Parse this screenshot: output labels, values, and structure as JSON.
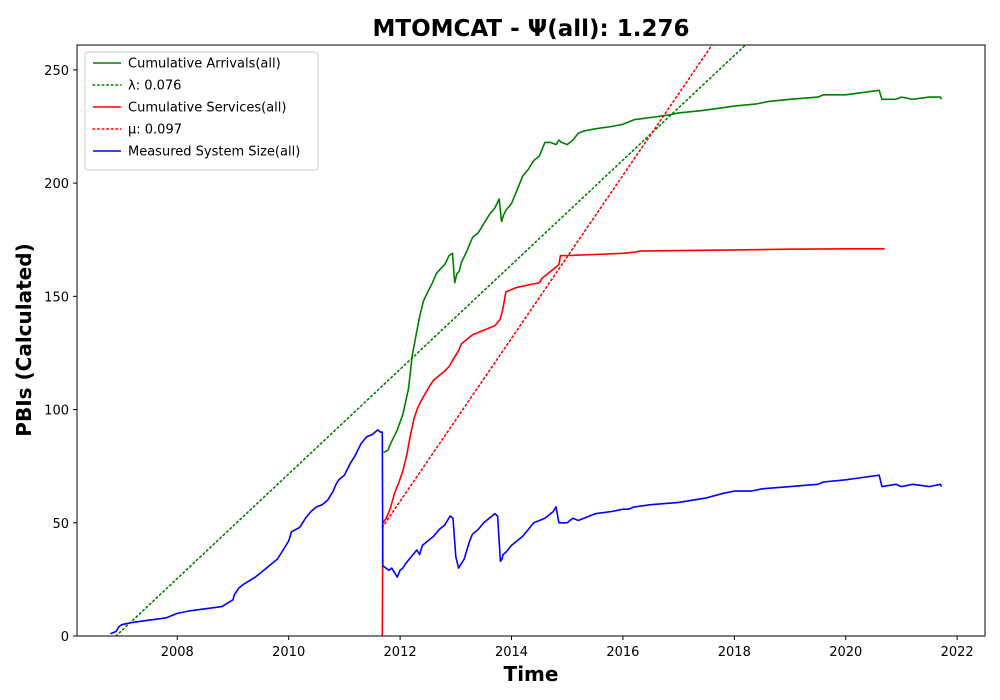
{
  "chart_data": {
    "type": "line",
    "title": "MTOMCAT -  Ψ(all): 1.276",
    "xlabel": "Time",
    "ylabel": "PBIs (Calculated)",
    "xlim": [
      2006.2,
      2022.5
    ],
    "ylim": [
      0,
      261
    ],
    "grid": false,
    "legend_position": "top-left",
    "x_ticks": [
      2008,
      2010,
      2012,
      2014,
      2016,
      2018,
      2020,
      2022
    ],
    "x_tick_labels": [
      "2008",
      "2010",
      "2012",
      "2014",
      "2016",
      "2018",
      "2020",
      "2022"
    ],
    "y_ticks": [
      0,
      50,
      100,
      150,
      200,
      250
    ],
    "y_tick_labels": [
      "0",
      "50",
      "100",
      "150",
      "200",
      "250"
    ],
    "series": [
      {
        "name": "Cumulative Arrivals(all)",
        "color": "#008000",
        "style": "solid",
        "x": [
          2011.7,
          2011.78,
          2011.85,
          2011.95,
          2012.05,
          2012.15,
          2012.22,
          2012.28,
          2012.35,
          2012.42,
          2012.5,
          2012.58,
          2012.65,
          2012.72,
          2012.8,
          2012.88,
          2012.94,
          2012.98,
          2013.02,
          2013.06,
          2013.1,
          2013.2,
          2013.3,
          2013.4,
          2013.5,
          2013.6,
          2013.7,
          2013.78,
          2013.82,
          2013.86,
          2013.9,
          2014.0,
          2014.1,
          2014.2,
          2014.3,
          2014.4,
          2014.5,
          2014.6,
          2014.7,
          2014.8,
          2014.85,
          2014.9,
          2015.0,
          2015.1,
          2015.2,
          2015.3,
          2015.5,
          2015.8,
          2016.0,
          2016.2,
          2016.5,
          2016.8,
          2017.0,
          2017.4,
          2017.7,
          2018.0,
          2018.4,
          2018.6,
          2019.0,
          2019.5,
          2019.6,
          2020.0,
          2020.3,
          2020.6,
          2020.65,
          2020.9,
          2021.0,
          2021.2,
          2021.5,
          2021.7,
          2021.72
        ],
        "y": [
          81,
          82,
          86,
          91,
          98,
          109,
          124,
          132,
          141,
          148,
          152,
          156,
          160,
          162,
          164,
          168,
          169,
          156,
          160,
          161,
          165,
          170,
          176,
          178,
          182,
          186,
          189,
          193,
          183,
          186,
          188,
          191,
          197,
          203,
          206,
          210,
          212,
          218,
          218,
          217,
          219,
          218,
          217,
          219,
          222,
          223,
          224,
          225,
          226,
          228,
          229,
          230,
          231,
          232,
          233,
          234,
          235,
          236,
          237,
          238,
          239,
          239,
          240,
          241,
          237,
          237,
          238,
          237,
          238,
          238,
          237
        ]
      },
      {
        "name": "λ: 0.076",
        "color": "#008000",
        "style": "dotted",
        "x": [
          2006.9,
          2018.2
        ],
        "y": [
          0,
          261
        ]
      },
      {
        "name": "Cumulative Services(all)",
        "color": "#ff0000",
        "style": "solid",
        "x": [
          2011.68,
          2011.69,
          2011.75,
          2011.82,
          2011.9,
          2011.98,
          2012.05,
          2012.12,
          2012.18,
          2012.25,
          2012.32,
          2012.38,
          2012.45,
          2012.52,
          2012.6,
          2012.7,
          2012.8,
          2012.88,
          2012.95,
          2013.0,
          2013.05,
          2013.1,
          2013.2,
          2013.3,
          2013.4,
          2013.5,
          2013.6,
          2013.7,
          2013.8,
          2013.85,
          2013.9,
          2014.0,
          2014.1,
          2014.3,
          2014.5,
          2014.55,
          2014.65,
          2014.75,
          2014.85,
          2014.88,
          2015.0,
          2015.5,
          2016.0,
          2016.2,
          2016.3,
          2017.0,
          2018.0,
          2019.0,
          2020.0,
          2020.7
        ],
        "y": [
          0,
          50,
          52,
          56,
          63,
          68,
          73,
          80,
          88,
          96,
          101,
          104,
          107,
          110,
          113,
          115,
          117,
          119,
          122,
          124,
          126,
          129,
          131,
          133,
          134,
          135,
          136,
          137,
          140,
          145,
          152,
          153,
          154,
          155,
          156,
          158,
          160,
          162,
          164,
          168,
          168,
          168.5,
          169,
          169.5,
          170,
          170.2,
          170.5,
          170.8,
          171,
          171
        ]
      },
      {
        "name": "μ: 0.097",
        "color": "#ff0000",
        "style": "dotted",
        "x": [
          2011.68,
          2017.6
        ],
        "y": [
          48,
          261
        ]
      },
      {
        "name": "Measured System Size(all)",
        "color": "#0000ff",
        "style": "solid",
        "x": [
          2006.8,
          2006.9,
          2006.95,
          2007.0,
          2007.2,
          2007.5,
          2007.8,
          2008.0,
          2008.2,
          2008.5,
          2008.8,
          2009.0,
          2009.02,
          2009.1,
          2009.2,
          2009.4,
          2009.6,
          2009.8,
          2009.9,
          2010.0,
          2010.05,
          2010.2,
          2010.3,
          2010.4,
          2010.5,
          2010.6,
          2010.7,
          2010.8,
          2010.85,
          2010.9,
          2011.0,
          2011.1,
          2011.2,
          2011.3,
          2011.4,
          2011.5,
          2011.6,
          2011.65,
          2011.68,
          2011.69,
          2011.8,
          2011.85,
          2011.9,
          2011.95,
          2012.0,
          2012.05,
          2012.1,
          2012.2,
          2012.3,
          2012.35,
          2012.4,
          2012.5,
          2012.6,
          2012.7,
          2012.8,
          2012.9,
          2012.95,
          2013.0,
          2013.05,
          2013.1,
          2013.15,
          2013.2,
          2013.25,
          2013.3,
          2013.4,
          2013.5,
          2013.6,
          2013.7,
          2013.75,
          2013.8,
          2013.83,
          2013.85,
          2013.9,
          2014.0,
          2014.1,
          2014.2,
          2014.3,
          2014.4,
          2014.5,
          2014.6,
          2014.7,
          2014.75,
          2014.8,
          2014.85,
          2015.0,
          2015.1,
          2015.2,
          2015.3,
          2015.5,
          2015.8,
          2016.0,
          2016.1,
          2016.2,
          2016.5,
          2017.0,
          2017.5,
          2017.8,
          2018.0,
          2018.3,
          2018.5,
          2019.0,
          2019.5,
          2019.6,
          2020.0,
          2020.3,
          2020.6,
          2020.65,
          2020.9,
          2021.0,
          2021.2,
          2021.5,
          2021.7,
          2021.72
        ],
        "y": [
          1,
          2,
          4,
          5,
          6,
          7,
          8,
          10,
          11,
          12,
          13,
          16,
          18,
          21,
          23,
          26,
          30,
          34,
          38,
          42,
          46,
          48,
          52,
          55,
          57,
          58,
          60,
          64,
          67,
          69,
          71,
          76,
          80,
          85,
          88,
          89,
          91,
          90,
          90,
          31,
          29,
          30,
          28,
          26,
          29,
          30,
          32,
          35,
          38,
          36,
          40,
          42,
          44,
          47,
          49,
          53,
          52,
          35,
          30,
          32,
          34,
          38,
          42,
          45,
          47,
          50,
          52,
          54,
          53,
          33,
          34,
          36,
          37,
          40,
          42,
          44,
          47,
          50,
          51,
          52,
          54,
          55,
          57,
          50,
          50,
          52,
          51,
          52,
          54,
          55,
          56,
          56,
          57,
          58,
          59,
          61,
          63,
          64,
          64,
          65,
          66,
          67,
          68,
          69,
          70,
          71,
          66,
          67,
          66,
          67,
          66,
          67,
          66
        ]
      }
    ]
  }
}
